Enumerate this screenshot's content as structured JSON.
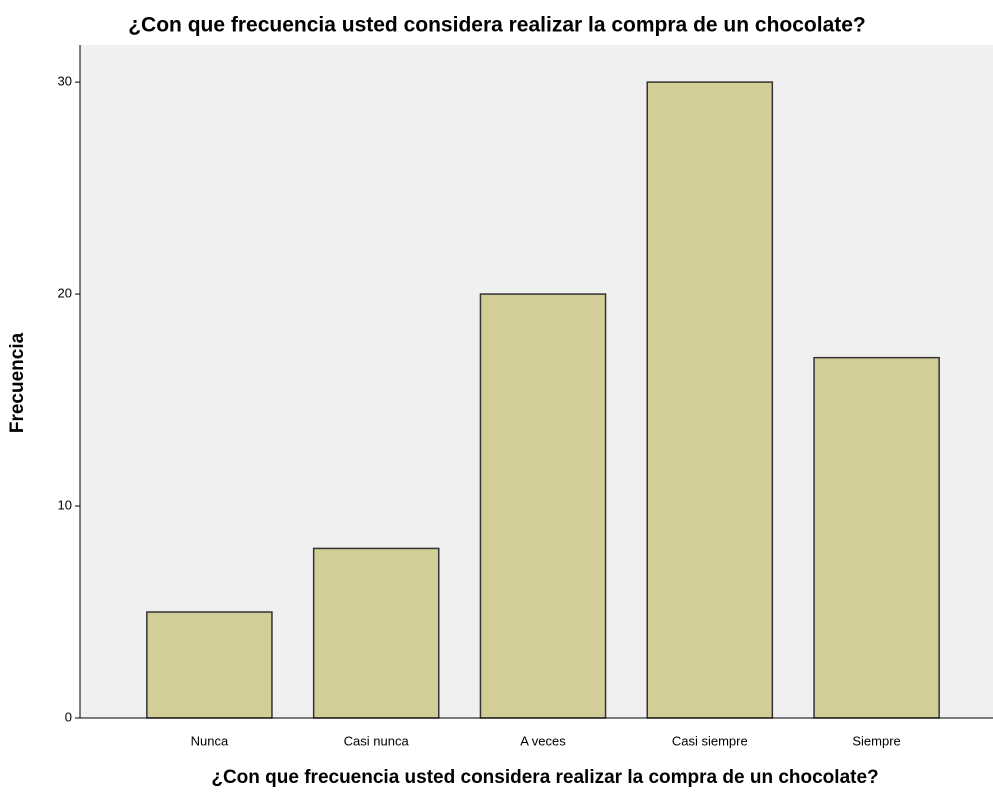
{
  "chart_data": {
    "type": "bar",
    "title": "¿Con que frecuencia usted considera realizar la compra de un chocolate?",
    "x_label": "¿Con que frecuencia usted considera realizar la compra de un chocolate?",
    "y_label": "Frecuencia",
    "categories": [
      "Nunca",
      "Casi nunca",
      "A veces",
      "Casi siempre",
      "Siempre"
    ],
    "values": [
      5,
      8,
      20,
      30,
      17
    ],
    "color": "#d3ce97",
    "ylim": [
      0,
      31.75
    ],
    "yticks": [
      0,
      10,
      20,
      30
    ],
    "grid": false
  }
}
